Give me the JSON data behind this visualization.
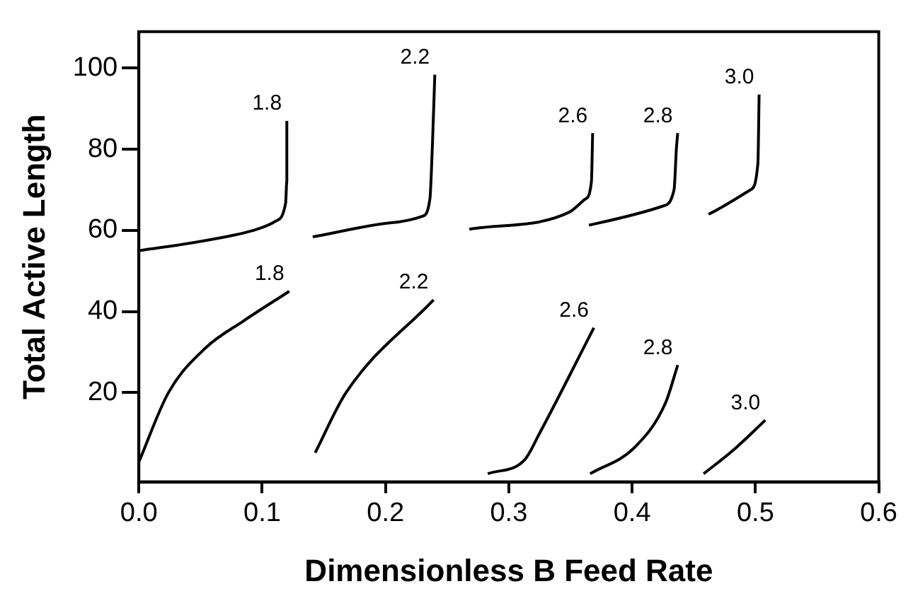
{
  "chart_data": {
    "type": "line",
    "xlabel": "Dimensionless B Feed Rate",
    "ylabel": "Total Active Length",
    "xlim": [
      0,
      0.6
    ],
    "xticks": [
      {
        "value": 0,
        "label": "0.0"
      },
      0.1,
      0.2,
      0.3,
      0.4,
      0.5,
      0.6
    ],
    "ylim": [
      -2,
      109
    ],
    "yticks": [
      20,
      40,
      60,
      80,
      100
    ],
    "grid": false,
    "legend": false,
    "marker": "none",
    "line_style": "solid",
    "series": [
      {
        "name": "1.8",
        "color": "#000000",
        "x": [
          0,
          0.054,
          0.096,
          0.111,
          0.119,
          0.12,
          0.12
        ],
        "values": [
          55,
          57.5,
          60.3,
          62.3,
          66.7,
          72,
          87
        ]
      },
      {
        "name": "2.2",
        "color": "#000000",
        "x": [
          0.141,
          0.205,
          0.23,
          0.236,
          0.238,
          0.24
        ],
        "values": [
          58.4,
          61.9,
          63.5,
          67.7,
          80.6,
          98.4
        ]
      },
      {
        "name": "2.6",
        "color": "#000000",
        "x": [
          0.268,
          0.349,
          0.362,
          0.367,
          0.368
        ],
        "values": [
          60.3,
          64.5,
          67.7,
          72,
          84
        ]
      },
      {
        "name": "2.8",
        "color": "#000000",
        "x": [
          0.365,
          0.425,
          0.434,
          0.436,
          0.437
        ],
        "values": [
          61.3,
          66,
          70,
          80.6,
          84
        ]
      },
      {
        "name": "3.0",
        "color": "#000000",
        "x": [
          0.462,
          0.496,
          0.502,
          0.503
        ],
        "values": [
          64,
          70,
          76.5,
          93.5
        ]
      },
      {
        "name": "1.8",
        "color": "#000000",
        "x": [
          0,
          0.024,
          0.054,
          0.085,
          0.122
        ],
        "values": [
          2.9,
          20,
          31,
          37.7,
          45
        ]
      },
      {
        "name": "2.2",
        "color": "#000000",
        "x": [
          0.143,
          0.168,
          0.239
        ],
        "values": [
          5.2,
          20,
          42.9
        ]
      },
      {
        "name": "2.6",
        "color": "#000000",
        "x": [
          0.283,
          0.313,
          0.325,
          0.369
        ],
        "values": [
          0,
          3.5,
          10,
          36
        ]
      },
      {
        "name": "2.8",
        "color": "#000000",
        "x": [
          0.366,
          0.402,
          0.427,
          0.437
        ],
        "values": [
          0,
          6.5,
          17.4,
          26.8
        ]
      },
      {
        "name": "3.0",
        "color": "#000000",
        "x": [
          0.458,
          0.482,
          0.508
        ],
        "values": [
          0,
          5.8,
          13.2
        ]
      }
    ]
  }
}
